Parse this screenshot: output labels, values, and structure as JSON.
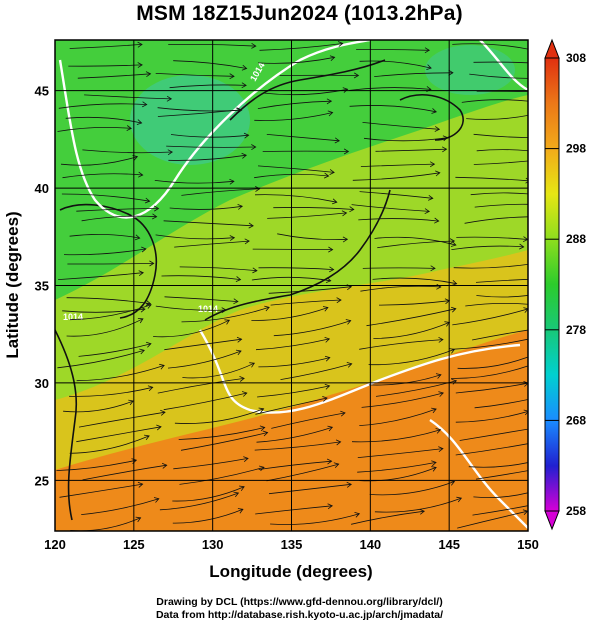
{
  "title": "MSM 18Z15Jun2024 (1013.2hPa)",
  "xaxis": {
    "label": "Longitude (degrees)",
    "range": [
      120,
      150
    ],
    "ticks": [
      120,
      125,
      130,
      135,
      140,
      145,
      150
    ]
  },
  "yaxis": {
    "label": "Latitude  (degrees)",
    "range": [
      22.4,
      47.6
    ],
    "ticks": [
      25,
      30,
      35,
      40,
      45
    ]
  },
  "colorbar": {
    "range": [
      258,
      308
    ],
    "tick_labels": [
      308,
      298,
      288,
      278,
      268,
      258
    ],
    "colors": [
      "#d600d6",
      "#2020d0",
      "#1a8cff",
      "#00d0d0",
      "#18c878",
      "#2ccc2c",
      "#8ede1e",
      "#e6e614",
      "#f2aa1a",
      "#ec7818",
      "#e03010"
    ]
  },
  "map": {
    "fill_colors": {
      "ocean_south": "#ee8a1a",
      "ocean_mid": "#c8d21a",
      "north": "#34cc4a",
      "cold_pockets": "#3ec8a8"
    },
    "contour_color": "#ffffff",
    "contour_labels": [
      "1014",
      "1014",
      "1014"
    ],
    "grid": true
  },
  "credits": {
    "line1": "Drawing by DCL (https://www.gfd-dennou.org/library/dcl/)",
    "line2": "Data from http://database.rish.kyoto-u.ac.jp/arch/jmadata/"
  }
}
